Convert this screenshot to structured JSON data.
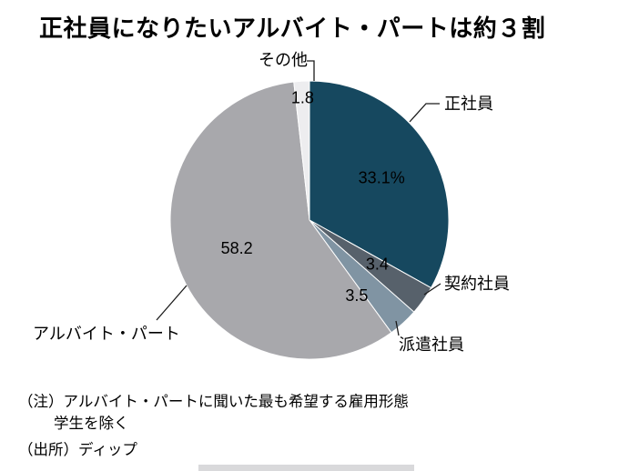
{
  "title": "正社員になりたいアルバイト・パートは約３割",
  "chart_data": {
    "type": "pie",
    "title": "正社員になりたいアルバイト・パートは約３割",
    "unit": "%",
    "start_angle_deg": 0,
    "direction": "clockwise",
    "legend_position": "outside-labels-with-leader-lines",
    "slices": [
      {
        "label": "正社員",
        "value": 33.1,
        "display_value": "33.1%",
        "color": "#16485f",
        "value_text_color": "#ffffff"
      },
      {
        "label": "契約社員",
        "value": 3.4,
        "display_value": "3.4",
        "color": "#57616b",
        "value_text_color": "#ffffff"
      },
      {
        "label": "派遣社員",
        "value": 3.5,
        "display_value": "3.5",
        "color": "#8094a3",
        "value_text_color": "#000000"
      },
      {
        "label": "アルバイト・パート",
        "value": 58.2,
        "display_value": "58.2",
        "color": "#a8a8ac",
        "value_text_color": "#000000"
      },
      {
        "label": "その他",
        "value": 1.8,
        "display_value": "1.8",
        "color": "#ededef",
        "value_text_color": "#000000"
      }
    ]
  },
  "notes": {
    "note1": "（注）アルバイト・パートに聞いた最も希望する雇用形態",
    "note2": "学生を除く",
    "source": "（出所）ディップ"
  }
}
